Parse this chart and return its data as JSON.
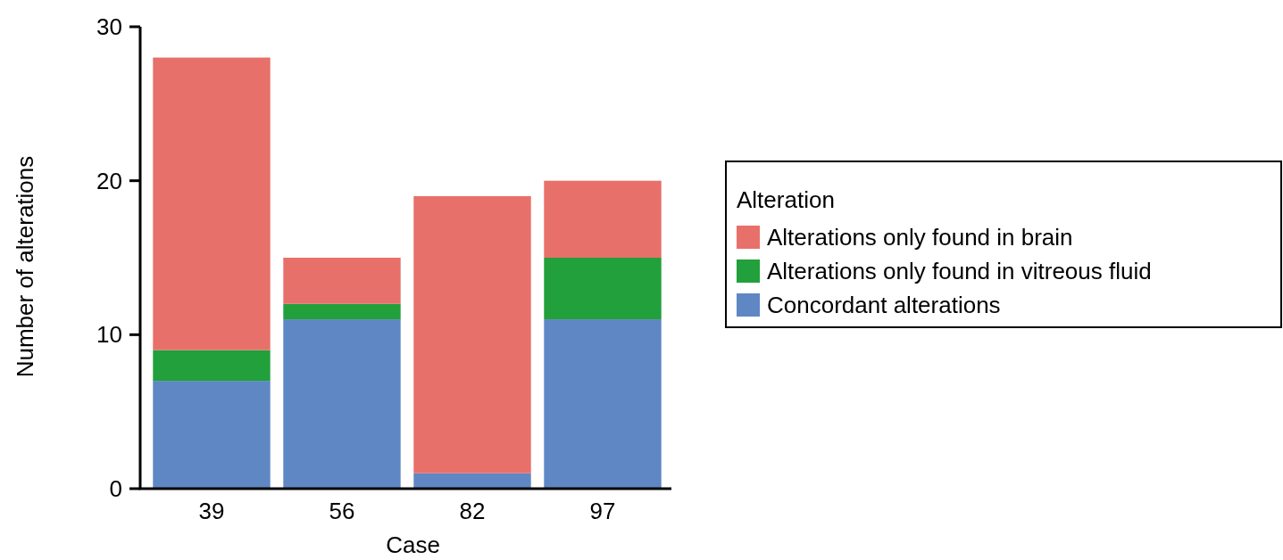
{
  "chart_data": {
    "type": "bar",
    "stacked": true,
    "xlabel": "Case",
    "ylabel": "Number of alterations",
    "legend_title": "Alteration",
    "categories": [
      "39",
      "56",
      "82",
      "97"
    ],
    "series": [
      {
        "name": "Concordant alterations",
        "color": "#5f87c4",
        "values": [
          7,
          11,
          1,
          11
        ]
      },
      {
        "name": "Alterations only found in vitreous fluid",
        "color": "#22a03c",
        "values": [
          2,
          1,
          0,
          4
        ]
      },
      {
        "name": "Alterations only found in brain",
        "color": "#e8706a",
        "values": [
          19,
          3,
          18,
          5
        ]
      }
    ],
    "ylim": [
      0,
      30
    ],
    "yticks": [
      0,
      10,
      20,
      30
    ],
    "legend": "right",
    "grid": false
  }
}
